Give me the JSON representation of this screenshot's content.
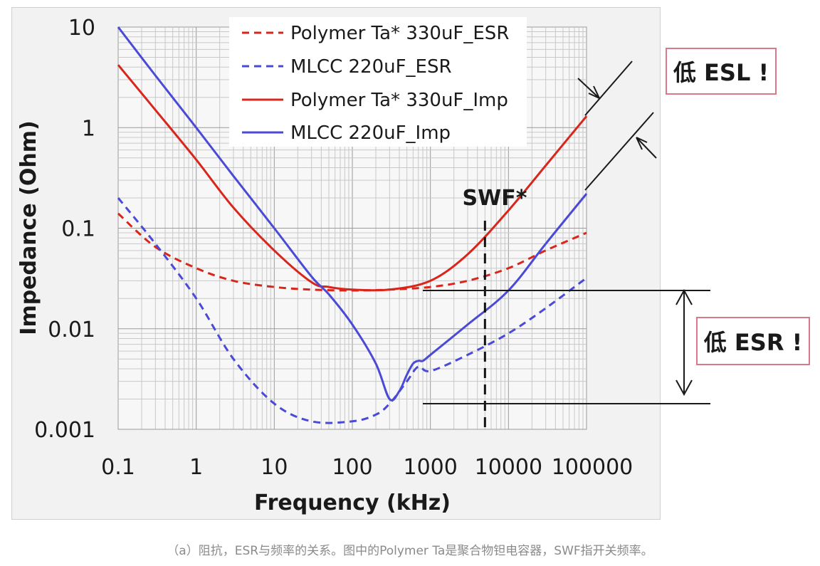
{
  "chart_data": {
    "type": "line",
    "xscale": "log",
    "yscale": "log",
    "xlabel": "Frequency (kHz)",
    "ylabel": "Impedance (Ohm)",
    "xlim": [
      0.1,
      100000
    ],
    "ylim": [
      0.001,
      10
    ],
    "x_tick_labels": [
      "0.1",
      "1",
      "10",
      "100",
      "1000",
      "10000",
      "100000"
    ],
    "y_tick_labels": [
      "0.001",
      "0.01",
      "0.1",
      "1",
      "10"
    ],
    "grid": true,
    "legend_position": "top-center",
    "series": [
      {
        "name": "Polymer Ta* 330uF_ESR",
        "color": "#d9261c",
        "style": "dashed",
        "x": [
          0.1,
          0.3,
          1,
          3,
          10,
          30,
          100,
          300,
          1000,
          3000,
          10000,
          30000,
          100000
        ],
        "y": [
          0.14,
          0.065,
          0.04,
          0.03,
          0.026,
          0.0245,
          0.024,
          0.0245,
          0.026,
          0.03,
          0.04,
          0.06,
          0.09
        ]
      },
      {
        "name": "MLCC 220uF_ESR",
        "color": "#4a4ad6",
        "style": "dashed",
        "x": [
          0.1,
          0.3,
          1,
          3,
          10,
          30,
          100,
          200,
          300,
          500,
          700,
          1000,
          3000,
          10000,
          30000,
          100000
        ],
        "y": [
          0.2,
          0.07,
          0.02,
          0.005,
          0.0018,
          0.0012,
          0.0012,
          0.0014,
          0.0018,
          0.003,
          0.0042,
          0.0038,
          0.0055,
          0.009,
          0.016,
          0.032
        ]
      },
      {
        "name": "Polymer Ta* 330uF_Imp",
        "color": "#d9261c",
        "style": "solid",
        "x": [
          0.1,
          0.3,
          1,
          3,
          10,
          30,
          50,
          100,
          300,
          1000,
          3000,
          10000,
          30000,
          100000
        ],
        "y": [
          4.2,
          1.5,
          0.48,
          0.16,
          0.06,
          0.029,
          0.026,
          0.0245,
          0.0245,
          0.03,
          0.055,
          0.15,
          0.42,
          1.3
        ]
      },
      {
        "name": "MLCC 220uF_Imp",
        "color": "#4a4ad6",
        "style": "solid",
        "x": [
          0.1,
          0.3,
          1,
          3,
          10,
          30,
          50,
          100,
          200,
          300,
          400,
          500,
          600,
          700,
          800,
          1000,
          3000,
          10000,
          30000,
          100000
        ],
        "y": [
          10,
          3.3,
          1.0,
          0.33,
          0.1,
          0.033,
          0.022,
          0.011,
          0.0045,
          0.002,
          0.0024,
          0.0035,
          0.0045,
          0.0048,
          0.0048,
          0.0055,
          0.011,
          0.024,
          0.07,
          0.22
        ]
      }
    ],
    "annotations": {
      "swf_label": "SWF*",
      "swf_frequency": 5000,
      "esl_label": "低 ESL !",
      "esr_label": "低 ESR !",
      "esr_ref_levels": [
        0.024,
        0.0018
      ]
    }
  },
  "caption": "（a）阻抗，ESR与频率的关系。图中的Polymer Ta是聚合物钽电容器，SWF指开关频率。"
}
